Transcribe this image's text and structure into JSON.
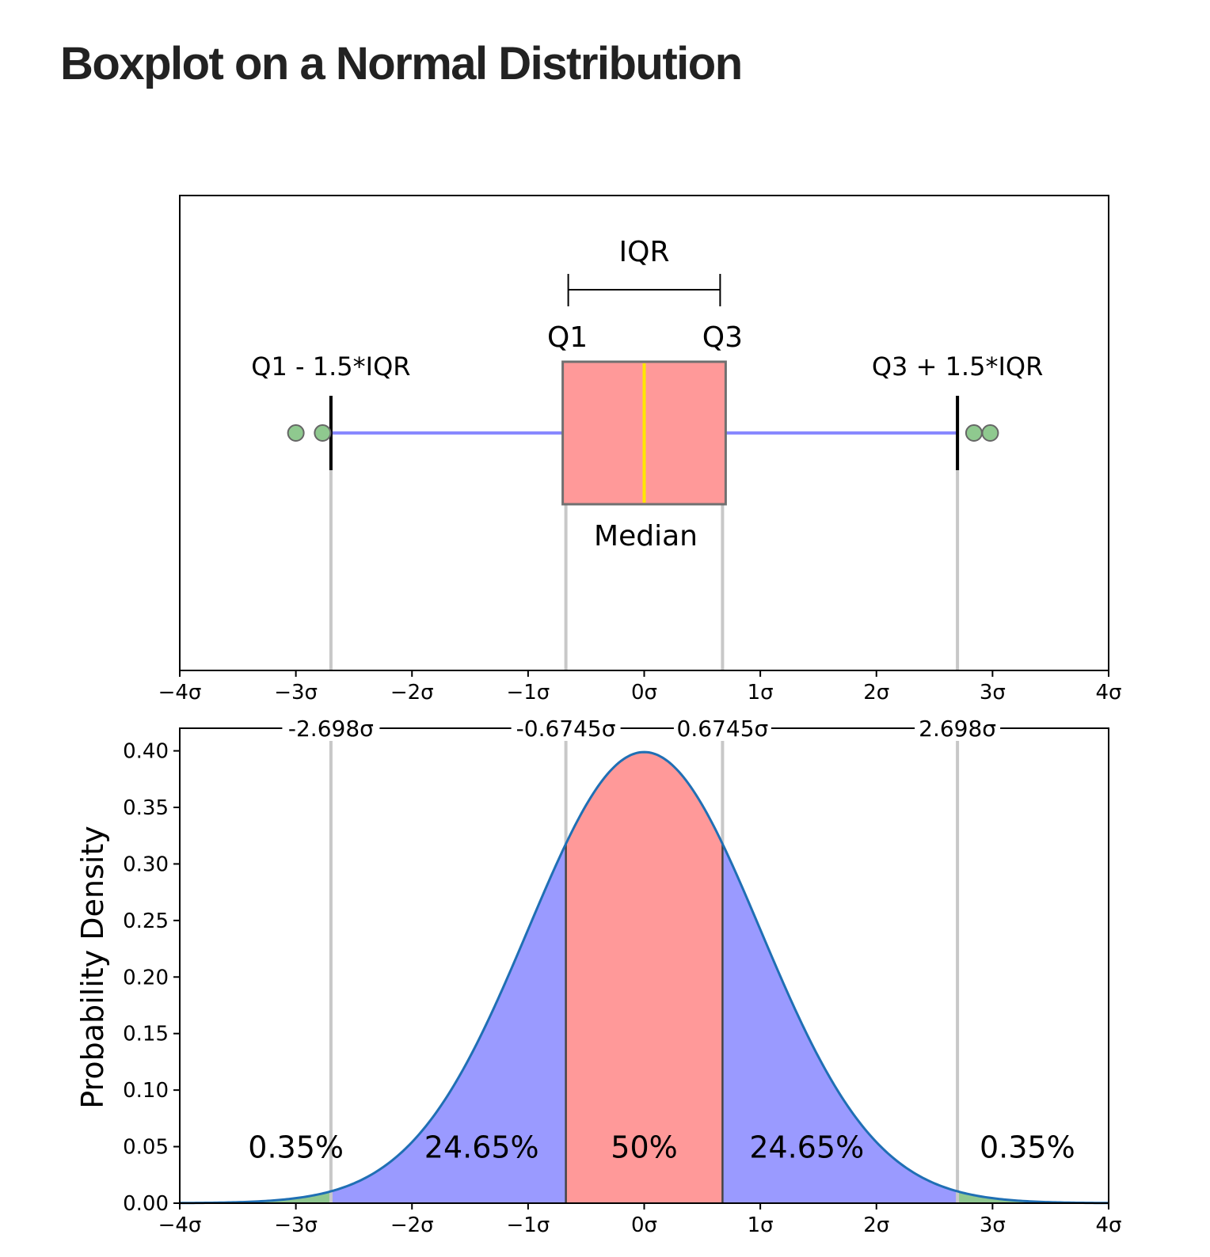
{
  "page": {
    "title": "Boxplot on a Normal Distribution"
  },
  "chart_data": [
    {
      "type": "boxplot",
      "panel": "top",
      "distribution": "standard normal",
      "q1": -0.6745,
      "median": 0,
      "q3": 0.6745,
      "lower_whisker": -2.698,
      "upper_whisker": 2.698,
      "outliers": [
        -3.0,
        -2.77,
        2.84,
        2.98
      ],
      "xlim": [
        -4,
        4
      ],
      "xticks": [
        -4,
        -3,
        -2,
        -1,
        0,
        1,
        2,
        3,
        4
      ],
      "xtick_labels": [
        "−4σ",
        "−3σ",
        "−2σ",
        "−1σ",
        "0σ",
        "1σ",
        "2σ",
        "3σ",
        "4σ"
      ],
      "annotations": {
        "iqr": "IQR",
        "q1": "Q1",
        "q3": "Q3",
        "lower_fence": "Q1 - 1.5*IQR",
        "upper_fence": "Q3 + 1.5*IQR",
        "median": "Median"
      },
      "colors": {
        "box": "#ff9999",
        "median": "#ffe600",
        "whisker": "#8888ff",
        "outlier": "#8fc98f"
      }
    },
    {
      "type": "area",
      "panel": "bottom",
      "function": "normal pdf (mean 0, sd 1)",
      "xlim": [
        -4,
        4
      ],
      "ylim": [
        0,
        0.42
      ],
      "ylabel": "Probability Density",
      "xticks": [
        -4,
        -3,
        -2,
        -1,
        0,
        1,
        2,
        3,
        4
      ],
      "xtick_labels": [
        "−4σ",
        "−3σ",
        "−2σ",
        "−1σ",
        "0σ",
        "1σ",
        "2σ",
        "3σ",
        "4σ"
      ],
      "yticks": [
        0.0,
        0.05,
        0.1,
        0.15,
        0.2,
        0.25,
        0.3,
        0.35,
        0.4
      ],
      "ytick_labels": [
        "0.00",
        "0.05",
        "0.10",
        "0.15",
        "0.20",
        "0.25",
        "0.30",
        "0.35",
        "0.40"
      ],
      "top_axis_ticks": [
        -2.698,
        -0.6745,
        0.6745,
        2.698
      ],
      "top_axis_labels": [
        "-2.698σ",
        "-0.6745σ",
        "0.6745σ",
        "2.698σ"
      ],
      "regions": [
        {
          "from": -4,
          "to": -2.698,
          "percent": "0.35%",
          "label_x": -3.0,
          "color": "#90c890"
        },
        {
          "from": -2.698,
          "to": -0.6745,
          "percent": "24.65%",
          "label_x": -1.4,
          "color": "#9a9aff"
        },
        {
          "from": -0.6745,
          "to": 0.6745,
          "percent": "50%",
          "label_x": 0,
          "color": "#ff9999"
        },
        {
          "from": 0.6745,
          "to": 2.698,
          "percent": "24.65%",
          "label_x": 1.4,
          "color": "#9a9aff"
        },
        {
          "from": 2.698,
          "to": 4,
          "percent": "0.35%",
          "label_x": 3.3,
          "color": "#90c890"
        }
      ],
      "colors": {
        "curve": "#1f6fb4"
      }
    }
  ]
}
